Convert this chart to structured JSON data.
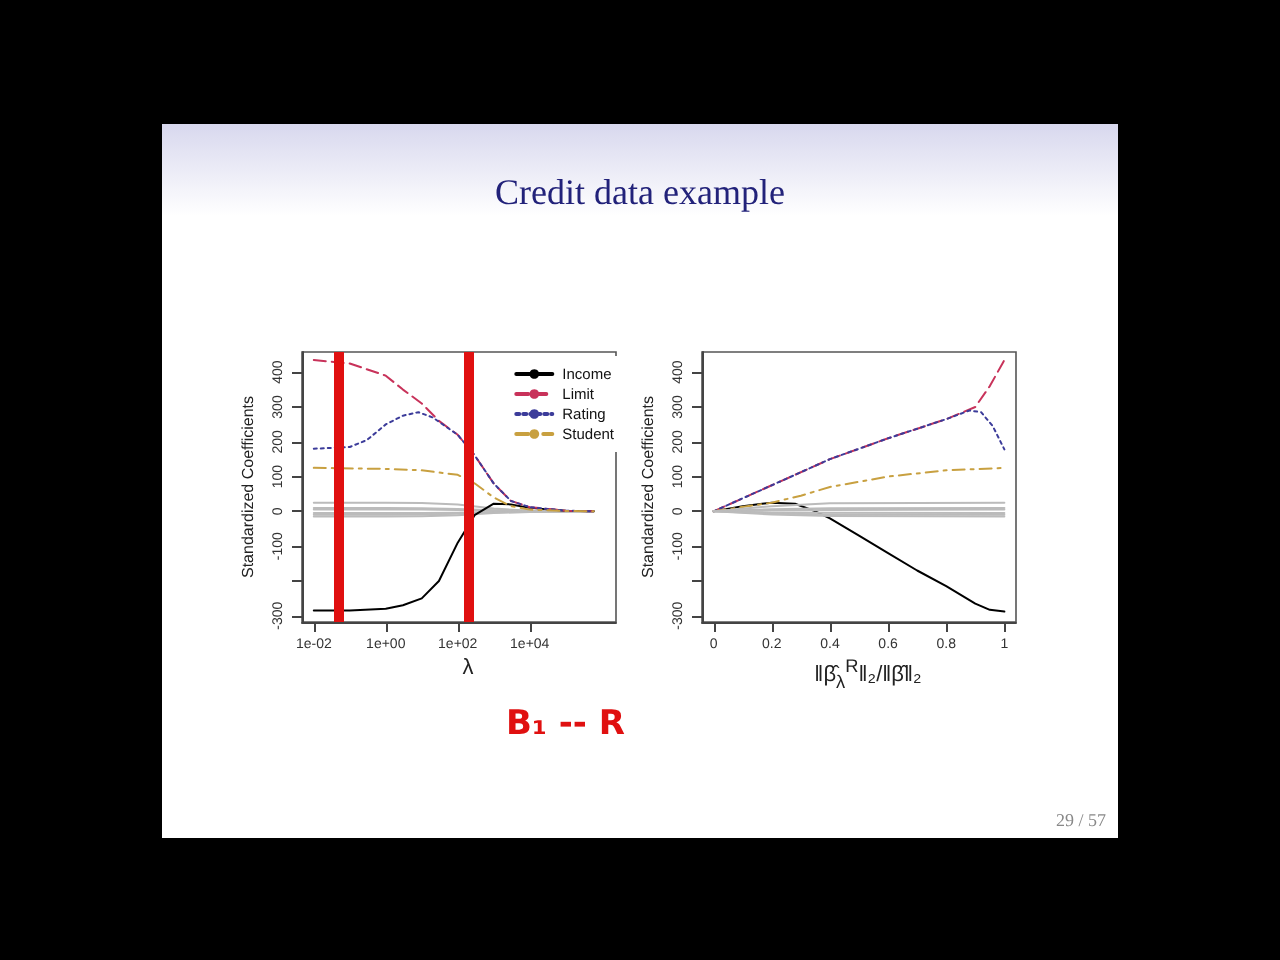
{
  "chart_data": [
    {
      "type": "line",
      "title": "Credit data example",
      "xlabel": "λ",
      "ylabel": "Standardized Coefficients",
      "log": "x",
      "grid": false,
      "legend": "top right",
      "marker": "none",
      "xlim": [
        0.0047,
        2500000
      ],
      "xticks": [
        {
          "value": 0.01,
          "label": "1e-02"
        },
        {
          "value": 1,
          "label": "1e+00"
        },
        {
          "value": 100,
          "label": "1e+02"
        },
        {
          "value": 10000,
          "label": "1e+04"
        }
      ],
      "ylim": [
        -318,
        458
      ],
      "yticks": [
        -300,
        {
          "value": -200,
          "label": null
        },
        -100,
        0,
        100,
        200,
        300,
        400
      ],
      "ref_lines": [
        {
          "axis": "x",
          "value": 0.05,
          "label": null,
          "color": "#e01010"
        },
        {
          "axis": "x",
          "value": 200,
          "label": null,
          "color": "#e01010"
        }
      ],
      "annotations": [
        "B₁ -- R",
        "29 / 57"
      ],
      "series": [
        {
          "name": "Income",
          "color": "#000000",
          "line_style": "solid",
          "x": [
            0.01,
            0.1,
            1,
            3,
            10,
            30,
            100,
            300,
            1000,
            3000,
            10000,
            100000,
            600000
          ],
          "values": [
            -285,
            -285,
            -280,
            -270,
            -250,
            -200,
            -90,
            -10,
            22,
            20,
            10,
            2,
            0
          ]
        },
        {
          "name": "Limit",
          "color": "#c8325a",
          "line_style": "dashed",
          "x": [
            0.01,
            0.1,
            1,
            3,
            10,
            30,
            100,
            300,
            1000,
            3000,
            10000,
            100000,
            600000
          ],
          "values": [
            435,
            425,
            390,
            350,
            310,
            260,
            220,
            160,
            80,
            30,
            12,
            2,
            0
          ]
        },
        {
          "name": "Rating",
          "color": "#3c3c9a",
          "line_style": "dotted",
          "x": [
            0.01,
            0.1,
            0.3,
            1,
            3,
            8,
            20,
            100,
            300,
            1000,
            3000,
            10000,
            100000,
            600000
          ],
          "values": [
            180,
            185,
            205,
            250,
            275,
            285,
            270,
            220,
            160,
            80,
            30,
            12,
            2,
            0
          ]
        },
        {
          "name": "Student",
          "color": "#c8a040",
          "line_style": "dashdot",
          "x": [
            0.01,
            1,
            10,
            100,
            300,
            1000,
            3000,
            10000,
            100000,
            600000
          ],
          "values": [
            125,
            122,
            118,
            105,
            80,
            40,
            15,
            5,
            1,
            0
          ]
        },
        {
          "color": "#bbbbbb",
          "line_style": "solid",
          "x": [
            0.01,
            1,
            10,
            100,
            1000,
            10000,
            600000
          ],
          "values": [
            25,
            25,
            24,
            20,
            8,
            2,
            0
          ]
        },
        {
          "color": "#bbbbbb",
          "line_style": "solid",
          "x": [
            0.01,
            1,
            10,
            100,
            1000,
            10000,
            600000
          ],
          "values": [
            10,
            10,
            9,
            7,
            3,
            1,
            0
          ]
        },
        {
          "color": "#bbbbbb",
          "line_style": "solid",
          "x": [
            0.01,
            1,
            10,
            100,
            1000,
            10000,
            600000
          ],
          "values": [
            5,
            5,
            5,
            4,
            2,
            1,
            0
          ]
        },
        {
          "color": "#bbbbbb",
          "line_style": "solid",
          "x": [
            0.01,
            1,
            10,
            100,
            1000,
            10000,
            600000
          ],
          "values": [
            -5,
            -5,
            -5,
            -4,
            -2,
            -1,
            0
          ]
        },
        {
          "color": "#bbbbbb",
          "line_style": "solid",
          "x": [
            0.01,
            1,
            10,
            100,
            1000,
            10000,
            600000
          ],
          "values": [
            -10,
            -10,
            -9,
            -7,
            -3,
            -1,
            0
          ]
        },
        {
          "color": "#bbbbbb",
          "line_style": "solid",
          "x": [
            0.01,
            1,
            10,
            100,
            1000,
            10000,
            600000
          ],
          "values": [
            -15,
            -15,
            -14,
            -11,
            -5,
            -2,
            0
          ]
        }
      ]
    },
    {
      "type": "line",
      "xlabel": "‖β̂$_{λ}$$^{R}$‖₂/‖β̂‖₂",
      "ylabel": "Standardized Coefficients",
      "grid": false,
      "marker": "none",
      "xlim": [
        -0.04,
        1.04
      ],
      "xticks": [
        0,
        0.2,
        0.4,
        0.6,
        0.8,
        1
      ],
      "ylim": [
        -318,
        458
      ],
      "yticks": [
        -300,
        {
          "value": -200,
          "label": null
        },
        -100,
        0,
        100,
        200,
        300,
        400
      ],
      "series": [
        {
          "color": "#000000",
          "line_style": "solid",
          "x": [
            0,
            0.1,
            0.2,
            0.28,
            0.35,
            0.4,
            0.5,
            0.6,
            0.7,
            0.8,
            0.9,
            0.95,
            1
          ],
          "values": [
            0,
            15,
            25,
            22,
            0,
            -20,
            -70,
            -120,
            -170,
            -215,
            -265,
            -283,
            -288
          ]
        },
        {
          "color": "#c8325a",
          "line_style": "dashed",
          "x": [
            0,
            0.2,
            0.4,
            0.6,
            0.8,
            0.9,
            0.95,
            1
          ],
          "values": [
            0,
            75,
            150,
            210,
            265,
            300,
            360,
            435
          ]
        },
        {
          "color": "#3c3c9a",
          "line_style": "dotted",
          "x": [
            0,
            0.2,
            0.4,
            0.6,
            0.8,
            0.88,
            0.92,
            0.96,
            1
          ],
          "values": [
            0,
            75,
            150,
            210,
            265,
            290,
            285,
            245,
            178
          ]
        },
        {
          "color": "#c8a040",
          "line_style": "dashdot",
          "x": [
            0,
            0.2,
            0.3,
            0.4,
            0.6,
            0.8,
            1
          ],
          "values": [
            0,
            25,
            45,
            70,
            100,
            118,
            125
          ]
        },
        {
          "color": "#bbbbbb",
          "line_style": "solid",
          "x": [
            0,
            0.2,
            0.4,
            1
          ],
          "values": [
            0,
            15,
            23,
            25
          ]
        },
        {
          "color": "#bbbbbb",
          "line_style": "solid",
          "x": [
            0,
            0.2,
            0.4,
            1
          ],
          "values": [
            0,
            6,
            9,
            10
          ]
        },
        {
          "color": "#bbbbbb",
          "line_style": "solid",
          "x": [
            0,
            0.2,
            0.4,
            1
          ],
          "values": [
            0,
            3,
            4,
            5
          ]
        },
        {
          "color": "#bbbbbb",
          "line_style": "solid",
          "x": [
            0,
            0.2,
            0.4,
            1
          ],
          "values": [
            0,
            -3,
            -4,
            -5
          ]
        },
        {
          "color": "#bbbbbb",
          "line_style": "solid",
          "x": [
            0,
            0.2,
            0.4,
            1
          ],
          "values": [
            0,
            -6,
            -9,
            -10
          ]
        },
        {
          "color": "#bbbbbb",
          "line_style": "solid",
          "x": [
            0,
            0.2,
            0.4,
            1
          ],
          "values": [
            0,
            -9,
            -13,
            -15
          ]
        }
      ]
    }
  ]
}
